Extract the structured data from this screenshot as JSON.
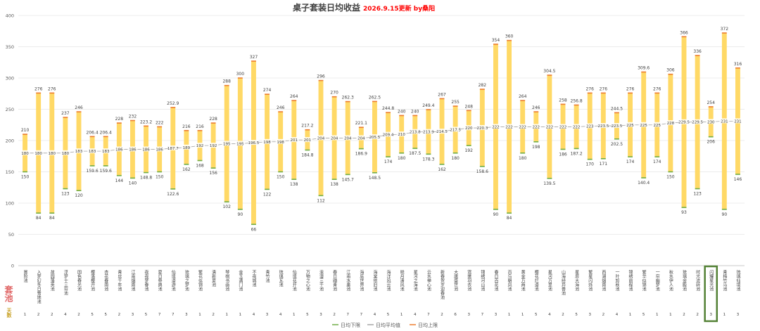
{
  "chart_data": {
    "type": "bar",
    "title": "桌子套装日均收益",
    "subtitle": "2026.9.15更新 by桑阳",
    "ylim": [
      0,
      400
    ],
    "yticks": [
      0,
      50,
      100,
      150,
      200,
      250,
      300,
      350,
      400
    ],
    "grid": true,
    "legend_position": "bottom-right",
    "row_labels": {
      "set": "套池",
      "days": "天数"
    },
    "highlight_index": 51,
    "series": [
      {
        "name": "日均下限",
        "color": "#70ad47"
      },
      {
        "name": "日均平均值",
        "color": "#a5a5a5"
      },
      {
        "name": "日均上限",
        "color": "#ed7d31"
      }
    ],
    "bar_color": "#ffd966",
    "points": [
      {
        "name": "冒险池",
        "lower": 150,
        "mean": 180,
        "upper": 210,
        "days": "1",
        "mean_label": "180"
      },
      {
        "name": "入梦幻冬日雪地池",
        "lower": 84,
        "mean": 180,
        "upper": 276,
        "days": "2",
        "mean_label": "180"
      },
      {
        "name": "故园落英池",
        "lower": 84,
        "mean": 180,
        "upper": 276,
        "days": "2",
        "mean_label": "180"
      },
      {
        "name": "浮梦十三帘池",
        "lower": 123,
        "mean": 180,
        "upper": 237,
        "days": "4",
        "mean_label": "180"
      },
      {
        "name": "国色春光池",
        "lower": 120,
        "mean": 183,
        "upper": 246,
        "days": "2",
        "mean_label": "183"
      },
      {
        "name": "樱落樱开池",
        "lower": 159.6,
        "mean": 183,
        "upper": 206.4,
        "days": "5",
        "mean_label": "183"
      },
      {
        "name": "杏花春雨池",
        "lower": 159.6,
        "mean": 183,
        "upper": 206.4,
        "days": "5",
        "mean_label": "183"
      },
      {
        "name": "青丝千年池",
        "lower": 144,
        "mean": 186,
        "upper": 228,
        "days": "2",
        "mean_label": "186"
      },
      {
        "name": "江南烟雨池",
        "lower": 140,
        "mean": 186,
        "upper": 232,
        "days": "3",
        "mean_label": "186"
      },
      {
        "name": "夜夜梦春池",
        "lower": 148.8,
        "mean": 186,
        "upper": 223.2,
        "days": "5",
        "mean_label": "186"
      },
      {
        "name": "夏日祭典池",
        "lower": 150,
        "mean": 186,
        "upper": 222,
        "days": "7",
        "mean_label": "186"
      },
      {
        "name": "仙境漫游池",
        "lower": 122.6,
        "mean": 187.7,
        "upper": 252.9,
        "days": "7",
        "mean_label": "187.7"
      },
      {
        "name": "琉璃之梦池",
        "lower": 162,
        "mean": 189,
        "upper": 216,
        "days": "3",
        "mean_label": "189"
      },
      {
        "name": "繁花似锦池",
        "lower": 168,
        "mean": 192,
        "upper": 216,
        "days": "1",
        "mean_label": "192"
      },
      {
        "name": "清新夏池",
        "lower": 156,
        "mean": 192,
        "upper": 228,
        "days": "2",
        "mean_label": "192"
      },
      {
        "name": "琴棋书画池",
        "lower": 102,
        "mean": 195,
        "upper": 288,
        "days": "1",
        "mean_label": "195"
      },
      {
        "name": "金玉满门池",
        "lower": 90,
        "mean": 195,
        "upper": 300,
        "days": "1",
        "mean_label": "195"
      },
      {
        "name": "不夜城池",
        "lower": 66,
        "mean": 196.5,
        "upper": 327,
        "days": "4",
        "mean_label": "196.5"
      },
      {
        "name": "青竹池",
        "lower": 122,
        "mean": 198,
        "upper": 274,
        "days": "3",
        "mean_label": "198"
      },
      {
        "name": "琉璃瓦池",
        "lower": 150,
        "mean": 198,
        "upper": 246,
        "days": "4",
        "mean_label": "198"
      },
      {
        "name": "仙境花开池",
        "lower": 138,
        "mean": 201,
        "upper": 264,
        "days": "1",
        "mean_label": "201"
      },
      {
        "name": "万物之心池",
        "lower": 184.8,
        "mean": 201,
        "upper": 217.2,
        "days": "5",
        "mean_label": "201"
      },
      {
        "name": "浪漫三千池",
        "lower": 112,
        "mean": 204,
        "upper": 296,
        "days": "3",
        "mean_label": "204"
      },
      {
        "name": "春日踏青池",
        "lower": 138,
        "mean": 204,
        "upper": 270,
        "days": "2",
        "mean_label": "204"
      },
      {
        "name": "江南水墨池",
        "lower": 145.7,
        "mean": 204,
        "upper": 262.3,
        "days": "7",
        "mean_label": "204"
      },
      {
        "name": "海底世界池",
        "lower": 186.9,
        "mean": 204,
        "upper": 221.1,
        "days": "7",
        "mean_label": "204"
      },
      {
        "name": "海棠依旧池",
        "lower": 148.5,
        "mean": 205.5,
        "upper": 262.5,
        "days": "4",
        "mean_label": "205.5"
      },
      {
        "name": "海洋风云池",
        "lower": 174,
        "mean": 209.4,
        "upper": 244.8,
        "days": "5",
        "mean_label": "209.4"
      },
      {
        "name": "晓月清风池",
        "lower": 180,
        "mean": 210,
        "upper": 240,
        "days": "1",
        "mean_label": "210"
      },
      {
        "name": "星河之海池",
        "lower": 187.5,
        "mean": 213.8,
        "upper": 240,
        "days": "4",
        "mean_label": "213.8"
      },
      {
        "name": "云水禅心池",
        "lower": 178.3,
        "mean": 213.9,
        "upper": 249.4,
        "days": "7",
        "mean_label": "213.9"
      },
      {
        "name": "新春贺岁迎春池",
        "lower": 162,
        "mean": 214.5,
        "upper": 267,
        "days": "2",
        "mean_label": "214.5"
      },
      {
        "name": "大唐盛世池",
        "lower": 180,
        "mean": 217.5,
        "upper": 255,
        "days": "6",
        "mean_label": "217.5"
      },
      {
        "name": "霓裳羽衣池",
        "lower": 192,
        "mean": 220,
        "upper": 248,
        "days": "3",
        "mean_label": "220"
      },
      {
        "name": "锦绣河山池",
        "lower": 158.6,
        "mean": 220.3,
        "upper": 282,
        "days": "7",
        "mean_label": "220.3"
      },
      {
        "name": "春日百花池",
        "lower": 90,
        "mean": 222,
        "upper": 354,
        "days": "3",
        "mean_label": "222"
      },
      {
        "name": "百鸟朝凤池",
        "lower": 84,
        "mean": 222,
        "upper": 360,
        "days": "1",
        "mean_label": "222"
      },
      {
        "name": "黄金万两池",
        "lower": 180,
        "mean": 222,
        "upper": 264,
        "days": "1",
        "mean_label": "222"
      },
      {
        "name": "樱花烂漫池",
        "lower": 198,
        "mean": 222,
        "upper": 246,
        "days": "5",
        "mean_label": "222"
      },
      {
        "name": "星河万里池",
        "lower": 139.5,
        "mean": 222,
        "upper": 304.5,
        "days": "4",
        "mean_label": "222"
      },
      {
        "name": "山海经异兽池",
        "lower": 186,
        "mean": 222,
        "upper": 258,
        "days": "2",
        "mean_label": "222"
      },
      {
        "name": "星辰大海池",
        "lower": 187.2,
        "mean": 222,
        "upper": 256.8,
        "days": "5",
        "mean_label": "222"
      },
      {
        "name": "繁星闪烁池",
        "lower": 170,
        "mean": 223,
        "upper": 276,
        "days": "3",
        "mean_label": "223"
      },
      {
        "name": "西湖烟雨池",
        "lower": 171,
        "mean": 223.5,
        "upper": 276,
        "days": "2",
        "mean_label": "223.5"
      },
      {
        "name": "一叶知秋池",
        "lower": 202.5,
        "mean": 223.5,
        "upper": 244.5,
        "days": "4",
        "mean_label": "223.5"
      },
      {
        "name": "锦绣前程池",
        "lower": 174,
        "mean": 225,
        "upper": 276,
        "days": "1",
        "mean_label": "225"
      },
      {
        "name": "繁华似锦池",
        "lower": 140.4,
        "mean": 225,
        "upper": 309.6,
        "days": "5",
        "mean_label": "225"
      },
      {
        "name": "一帘幽梦池",
        "lower": 174,
        "mean": 225,
        "upper": 276,
        "days": "1",
        "mean_label": "225"
      },
      {
        "name": "秋水伊人池",
        "lower": 150,
        "mean": 228,
        "upper": 306,
        "days": "1",
        "mean_label": "228"
      },
      {
        "name": "琉璃金殿池",
        "lower": 93,
        "mean": 229.5,
        "upper": 366,
        "days": "2",
        "mean_label": "229.5"
      },
      {
        "name": "时光流转池",
        "lower": 123,
        "mean": 229.5,
        "upper": 336,
        "days": "2",
        "mean_label": "229.5"
      },
      {
        "name": "闪耀星光池",
        "lower": 206,
        "mean": 230,
        "upper": 254,
        "days": "3",
        "mean_label": "230"
      },
      {
        "name": "青梅竹马池",
        "lower": 90,
        "mean": 231,
        "upper": 372,
        "days": "1",
        "mean_label": "231"
      },
      {
        "name": "琉璃仙境池",
        "lower": 146,
        "mean": 231,
        "upper": 316,
        "days": "3",
        "mean_label": "231"
      }
    ]
  }
}
